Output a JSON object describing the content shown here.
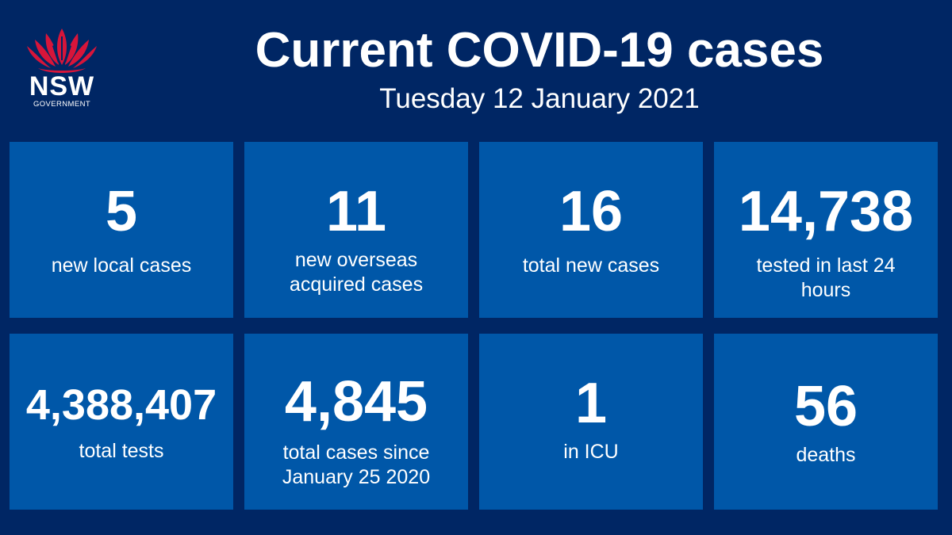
{
  "logo": {
    "icon": "waratah-flower-icon",
    "name": "NSW",
    "sub": "GOVERNMENT",
    "color": "#d7153a"
  },
  "header": {
    "title": "Current COVID-19 cases",
    "date": "Tuesday 12 January 2021"
  },
  "colors": {
    "background": "#002664",
    "tile": "#0057a8",
    "text": "#ffffff"
  },
  "stats": [
    {
      "value": "5",
      "label": "new local cases"
    },
    {
      "value": "11",
      "label": "new overseas acquired cases"
    },
    {
      "value": "16",
      "label": "total new cases"
    },
    {
      "value": "14,738",
      "label": "tested in last 24 hours"
    },
    {
      "value": "4,388,407",
      "label": "total tests"
    },
    {
      "value": "4,845",
      "label": "total cases since January 25 2020"
    },
    {
      "value": "1",
      "label": "in ICU"
    },
    {
      "value": "56",
      "label": "deaths"
    }
  ]
}
